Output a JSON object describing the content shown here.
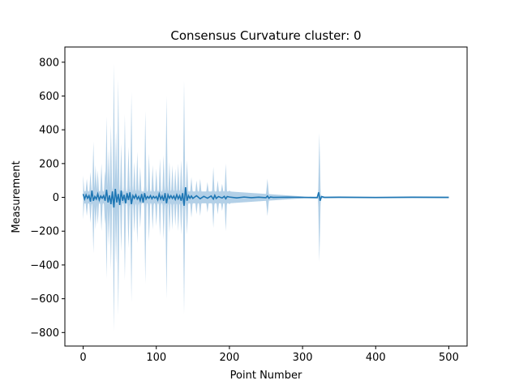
{
  "chart_data": {
    "type": "line",
    "title": "Consensus Curvature cluster: 0",
    "xlabel": "Point Number",
    "ylabel": "Measurement",
    "xlim": [
      -25,
      525
    ],
    "ylim": [
      -880,
      890
    ],
    "xticks": [
      0,
      100,
      200,
      300,
      400,
      500
    ],
    "yticks": [
      -800,
      -600,
      -400,
      -200,
      0,
      200,
      400,
      600,
      800
    ],
    "ytick_labels": [
      "−800",
      "−600",
      "−400",
      "−200",
      "0",
      "200",
      "400",
      "600",
      "800"
    ],
    "grid": false,
    "colors": {
      "line": "#1f77b4",
      "band": "#a6c8e3"
    },
    "series": [
      {
        "kind": "mean-line",
        "points": [
          [
            0,
            20
          ],
          [
            2,
            -10
          ],
          [
            4,
            15
          ],
          [
            6,
            -5
          ],
          [
            8,
            10
          ],
          [
            10,
            -25
          ],
          [
            12,
            40
          ],
          [
            14,
            -20
          ],
          [
            16,
            5
          ],
          [
            18,
            -10
          ],
          [
            20,
            20
          ],
          [
            22,
            -15
          ],
          [
            24,
            8
          ],
          [
            26,
            -5
          ],
          [
            28,
            10
          ],
          [
            30,
            -20
          ],
          [
            32,
            45
          ],
          [
            34,
            -30
          ],
          [
            36,
            12
          ],
          [
            38,
            -40
          ],
          [
            40,
            35
          ],
          [
            42,
            -60
          ],
          [
            44,
            50
          ],
          [
            46,
            -30
          ],
          [
            48,
            20
          ],
          [
            50,
            -45
          ],
          [
            52,
            40
          ],
          [
            54,
            -20
          ],
          [
            56,
            15
          ],
          [
            58,
            -35
          ],
          [
            60,
            25
          ],
          [
            62,
            -15
          ],
          [
            64,
            30
          ],
          [
            66,
            -40
          ],
          [
            68,
            10
          ],
          [
            70,
            -5
          ],
          [
            72,
            15
          ],
          [
            74,
            -10
          ],
          [
            76,
            5
          ],
          [
            78,
            -20
          ],
          [
            80,
            20
          ],
          [
            82,
            -30
          ],
          [
            84,
            25
          ],
          [
            86,
            -10
          ],
          [
            88,
            5
          ],
          [
            90,
            -5
          ],
          [
            92,
            10
          ],
          [
            94,
            -8
          ],
          [
            96,
            6
          ],
          [
            98,
            -4
          ],
          [
            100,
            5
          ],
          [
            102,
            -15
          ],
          [
            104,
            20
          ],
          [
            106,
            -10
          ],
          [
            108,
            8
          ],
          [
            110,
            -20
          ],
          [
            112,
            25
          ],
          [
            114,
            -35
          ],
          [
            116,
            15
          ],
          [
            118,
            -5
          ],
          [
            120,
            10
          ],
          [
            122,
            -6
          ],
          [
            124,
            8
          ],
          [
            126,
            -12
          ],
          [
            128,
            15
          ],
          [
            130,
            -8
          ],
          [
            132,
            10
          ],
          [
            134,
            -20
          ],
          [
            136,
            25
          ],
          [
            138,
            -50
          ],
          [
            140,
            60
          ],
          [
            142,
            -20
          ],
          [
            144,
            10
          ],
          [
            146,
            -5
          ],
          [
            148,
            8
          ],
          [
            150,
            -6
          ],
          [
            155,
            10
          ],
          [
            160,
            -8
          ],
          [
            165,
            6
          ],
          [
            170,
            -5
          ],
          [
            175,
            8
          ],
          [
            178,
            -10
          ],
          [
            180,
            12
          ],
          [
            182,
            -6
          ],
          [
            185,
            5
          ],
          [
            190,
            -4
          ],
          [
            193,
            6
          ],
          [
            195,
            -8
          ],
          [
            197,
            5
          ],
          [
            200,
            2
          ],
          [
            210,
            -3
          ],
          [
            220,
            2
          ],
          [
            230,
            -2
          ],
          [
            240,
            1
          ],
          [
            250,
            -2
          ],
          [
            252,
            8
          ],
          [
            254,
            -5
          ],
          [
            256,
            2
          ],
          [
            260,
            0
          ],
          [
            280,
            1
          ],
          [
            300,
            0
          ],
          [
            320,
            -2
          ],
          [
            322,
            30
          ],
          [
            324,
            -20
          ],
          [
            326,
            5
          ],
          [
            330,
            0
          ],
          [
            350,
            1
          ],
          [
            400,
            -1
          ],
          [
            450,
            1
          ],
          [
            500,
            0
          ]
        ]
      },
      {
        "kind": "spread-band",
        "base_amplitude": 35,
        "spikes": [
          [
            0,
            130
          ],
          [
            5,
            110
          ],
          [
            10,
            150
          ],
          [
            14,
            330
          ],
          [
            17,
            190
          ],
          [
            20,
            160
          ],
          [
            25,
            200
          ],
          [
            30,
            160
          ],
          [
            32,
            480
          ],
          [
            35,
            290
          ],
          [
            38,
            430
          ],
          [
            42,
            790
          ],
          [
            45,
            400
          ],
          [
            48,
            700
          ],
          [
            52,
            320
          ],
          [
            57,
            490
          ],
          [
            62,
            300
          ],
          [
            66,
            620
          ],
          [
            70,
            210
          ],
          [
            74,
            270
          ],
          [
            78,
            180
          ],
          [
            85,
            510
          ],
          [
            90,
            260
          ],
          [
            95,
            190
          ],
          [
            100,
            170
          ],
          [
            105,
            230
          ],
          [
            110,
            250
          ],
          [
            114,
            600
          ],
          [
            118,
            210
          ],
          [
            122,
            190
          ],
          [
            126,
            170
          ],
          [
            130,
            200
          ],
          [
            134,
            220
          ],
          [
            138,
            690
          ],
          [
            142,
            220
          ],
          [
            148,
            120
          ],
          [
            155,
            100
          ],
          [
            160,
            110
          ],
          [
            170,
            90
          ],
          [
            178,
            180
          ],
          [
            184,
            100
          ],
          [
            190,
            80
          ],
          [
            195,
            200
          ],
          [
            200,
            40
          ],
          [
            210,
            35
          ],
          [
            225,
            30
          ],
          [
            240,
            20
          ],
          [
            252,
            110
          ],
          [
            260,
            10
          ],
          [
            300,
            8
          ],
          [
            323,
            380
          ],
          [
            330,
            10
          ],
          [
            350,
            15
          ],
          [
            400,
            15
          ],
          [
            440,
            12
          ],
          [
            470,
            12
          ],
          [
            500,
            8
          ]
        ]
      }
    ]
  }
}
